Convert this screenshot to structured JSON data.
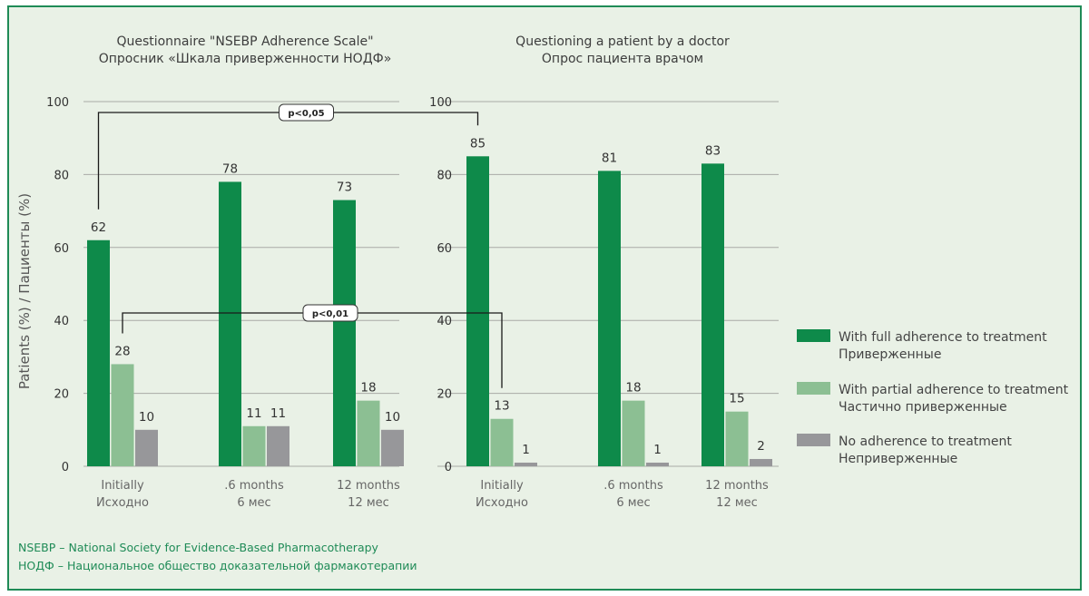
{
  "chart_data": [
    {
      "type": "bar",
      "title": "Questionnaire \"NSEBP Adherence Scale\"",
      "subtitle": "Опросник «Шкала приверженности НОДФ»",
      "ylabel": "Patients (%) / Пациенты (%)",
      "ylim": [
        0,
        100
      ],
      "yticks": [
        0,
        20,
        40,
        60,
        80,
        100
      ],
      "grid": true,
      "categories": [
        {
          "en": "Initially",
          "ru": "Исходно"
        },
        {
          "en": ".6 months",
          "ru": "6 мес"
        },
        {
          "en": "12 months",
          "ru": "12 мес"
        }
      ],
      "series": [
        {
          "name": "With full adherence to treatment / Приверженные",
          "values": [
            62,
            78,
            73
          ]
        },
        {
          "name": "With partial adherence to treatment / Частично приверженные",
          "values": [
            28,
            11,
            18
          ]
        },
        {
          "name": "No adherence to treatment / Неприверженные",
          "values": [
            10,
            11,
            10
          ]
        }
      ]
    },
    {
      "type": "bar",
      "title": "Questioning a patient by a doctor",
      "subtitle": "Опрос пациента врачом",
      "ylim": [
        0,
        100
      ],
      "yticks": [
        0,
        20,
        40,
        60,
        80,
        100
      ],
      "grid": true,
      "categories": [
        {
          "en": "Initially",
          "ru": "Исходно"
        },
        {
          "en": ".6 months",
          "ru": "6 мес"
        },
        {
          "en": "12 months",
          "ru": "12 мес"
        }
      ],
      "series": [
        {
          "name": "With full adherence to treatment / Приверженные",
          "values": [
            85,
            81,
            83
          ]
        },
        {
          "name": "With partial adherence to treatment / Частично приверженные",
          "values": [
            13,
            18,
            15
          ]
        },
        {
          "name": "No adherence to treatment / Неприверженные",
          "values": [
            1,
            1,
            2
          ]
        }
      ]
    }
  ],
  "significance": [
    {
      "label": "p<0,05",
      "from": {
        "chart": 0,
        "series": 0,
        "category": 0
      },
      "to": {
        "chart": 1,
        "series": 0,
        "category": 0
      }
    },
    {
      "label": "p<0,01",
      "from": {
        "chart": 0,
        "series": 1,
        "category": 0
      },
      "to": {
        "chart": 1,
        "series": 1,
        "category": 0
      }
    }
  ],
  "legend": {
    "placement": "right",
    "items": [
      {
        "en": "With full adherence to treatment",
        "ru": "Приверженные",
        "color": "#0e8a4a"
      },
      {
        "en": "With partial adherence to treatment",
        "ru": "Частично приверженные",
        "color": "#8cbf93"
      },
      {
        "en": "No adherence to treatment",
        "ru": "Неприверженные",
        "color": "#97979a"
      }
    ]
  },
  "footer": {
    "line1": "NSEBP – National Society for Evidence-Based Pharmacotherapy",
    "line2": "НОДФ – Национальное общество доказательной фармакотерапии"
  },
  "colors": {
    "full": "#0e8a4a",
    "partial": "#8cbf93",
    "none": "#97979a",
    "grid": "#a9aaa6",
    "frame": "#1f8b57"
  }
}
